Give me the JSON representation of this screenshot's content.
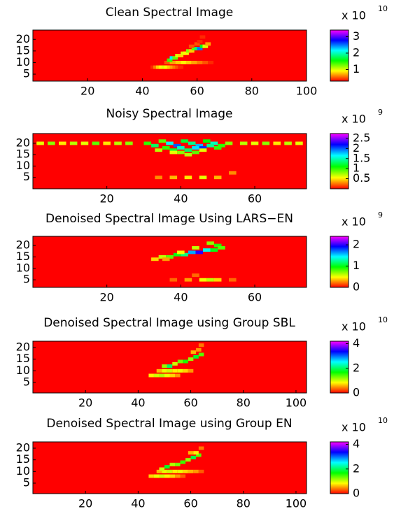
{
  "chart_data": [
    {
      "type": "heatmap",
      "title": "Clean Spectral Image",
      "xlim": [
        0,
        100
      ],
      "ylim": [
        2,
        24
      ],
      "xticks": [
        20,
        40,
        60,
        80,
        100
      ],
      "yticks": [
        5,
        10,
        15,
        20
      ],
      "clim": [
        0.3,
        3.4
      ],
      "cticks": [
        1,
        2,
        3
      ],
      "colorbar_label": "x 10",
      "colorbar_exponent": "10",
      "x": [
        44,
        45,
        46,
        47,
        48,
        49,
        50,
        51,
        52,
        53,
        54,
        49,
        51,
        53,
        55,
        57,
        59,
        61,
        63,
        65,
        50,
        51,
        52,
        53,
        54,
        55,
        56,
        57,
        58,
        59,
        60,
        61,
        62,
        63,
        64,
        58,
        60,
        61,
        62
      ],
      "y": [
        8,
        8,
        8,
        8,
        8,
        8,
        8,
        8,
        8,
        8,
        8,
        10,
        10,
        10,
        10,
        10,
        10,
        10,
        10,
        10,
        11,
        12,
        12,
        13,
        13,
        14,
        14,
        15,
        15,
        16,
        16,
        16,
        17,
        17,
        18,
        17,
        18,
        19,
        21
      ],
      "values": [
        0.4,
        0.6,
        0.8,
        0.9,
        1.0,
        0.9,
        0.8,
        0.7,
        0.6,
        0.5,
        0.4,
        0.5,
        0.7,
        0.8,
        0.9,
        0.8,
        0.7,
        0.6,
        0.5,
        0.4,
        1.4,
        2.2,
        1.3,
        1.0,
        0.8,
        1.0,
        0.9,
        1.2,
        0.8,
        1.3,
        1.8,
        2.5,
        1.6,
        1.0,
        0.7,
        0.5,
        0.5,
        0.4,
        0.4
      ]
    },
    {
      "type": "heatmap",
      "title": "Noisy Spectral Image",
      "xlim": [
        0,
        74
      ],
      "ylim": [
        0,
        24.3
      ],
      "xticks": [
        20,
        40,
        60
      ],
      "yticks": [
        5,
        10,
        15,
        20
      ],
      "clim": [
        0,
        2.74
      ],
      "cticks": [
        0.5,
        1,
        1.5,
        2,
        2.5
      ],
      "colorbar_label": "x 10",
      "colorbar_exponent": "9",
      "x": [
        2,
        5,
        8,
        11,
        14,
        17,
        20,
        23,
        26,
        57,
        60,
        63,
        66,
        69,
        72,
        31,
        33,
        35,
        37,
        39,
        41,
        43,
        45,
        47,
        49,
        51,
        53,
        34,
        36,
        38,
        40,
        42,
        44,
        46,
        48,
        50,
        38,
        40,
        42,
        44,
        46,
        34,
        38,
        42,
        46,
        50,
        54
      ],
      "y": [
        20,
        20,
        20,
        20,
        20,
        20,
        20,
        20,
        20,
        20,
        20,
        20,
        20,
        20,
        20,
        20,
        19,
        21,
        20,
        19,
        21,
        20,
        19,
        21,
        20,
        19,
        20,
        17,
        18,
        17,
        18,
        17,
        18,
        18,
        19,
        18,
        16,
        16,
        15,
        16,
        17,
        5,
        5,
        5,
        5,
        5,
        7
      ],
      "values": [
        0.6,
        0.8,
        0.5,
        0.7,
        0.6,
        0.9,
        0.5,
        0.7,
        0.8,
        0.7,
        0.6,
        0.8,
        0.5,
        0.7,
        0.6,
        1.0,
        1.3,
        0.9,
        1.6,
        2.0,
        1.2,
        1.4,
        1.8,
        1.1,
        1.5,
        1.0,
        0.8,
        0.7,
        1.0,
        1.2,
        1.5,
        1.3,
        1.7,
        2.1,
        1.4,
        1.0,
        0.6,
        0.8,
        0.7,
        0.9,
        0.6,
        0.3,
        0.4,
        0.5,
        0.6,
        0.4,
        0.3
      ]
    },
    {
      "type": "heatmap",
      "title": "Denoised Spectral Image Using LARS−EN",
      "xlim": [
        0,
        74
      ],
      "ylim": [
        1.7,
        24
      ],
      "xticks": [
        20,
        40,
        60
      ],
      "yticks": [
        5,
        10,
        15,
        20
      ],
      "clim": [
        0,
        2.4
      ],
      "cticks": [
        0,
        1,
        2
      ],
      "colorbar_label": "x 10",
      "colorbar_exponent": "9",
      "x": [
        33,
        35,
        37,
        39,
        41,
        43,
        45,
        47,
        49,
        50,
        51,
        48,
        36,
        40,
        44,
        38,
        42,
        46,
        48,
        50,
        54,
        44
      ],
      "y": [
        14,
        15,
        15,
        16,
        16,
        17,
        17,
        18,
        18,
        20,
        19,
        21,
        14,
        17,
        19,
        5,
        5,
        5,
        5,
        5,
        5,
        7
      ],
      "values": [
        0.4,
        0.6,
        0.8,
        1.0,
        1.2,
        1.6,
        2.0,
        1.4,
        1.0,
        0.9,
        0.8,
        0.7,
        0.3,
        0.5,
        0.6,
        0.2,
        0.3,
        0.5,
        0.6,
        0.4,
        0.2,
        0.2
      ]
    },
    {
      "type": "heatmap",
      "title": "Denoised Spectral Image using Group SBL",
      "xlim": [
        0,
        104
      ],
      "ylim": [
        0.5,
        22.7
      ],
      "xticks": [
        20,
        40,
        60,
        80,
        100
      ],
      "yticks": [
        5,
        10,
        15,
        20
      ],
      "clim": [
        0,
        4.2
      ],
      "cticks": [
        0,
        2,
        4
      ],
      "colorbar_label": "x 10",
      "colorbar_exponent": "10",
      "x": [
        45,
        47,
        49,
        51,
        53,
        55,
        48,
        50,
        52,
        54,
        56,
        58,
        60,
        50,
        52,
        54,
        56,
        58,
        60,
        62,
        64,
        61,
        63,
        64
      ],
      "y": [
        8,
        8,
        8,
        8,
        8,
        8,
        10,
        10,
        10,
        10,
        10,
        10,
        10,
        12,
        12,
        13,
        14,
        14,
        15,
        16,
        17,
        18,
        19,
        21
      ],
      "values": [
        0.8,
        1.0,
        1.1,
        0.9,
        0.7,
        0.5,
        0.6,
        0.9,
        1.0,
        0.8,
        0.9,
        0.7,
        0.5,
        1.2,
        2.0,
        1.0,
        1.3,
        1.6,
        1.2,
        1.8,
        1.4,
        0.6,
        0.5,
        0.4
      ]
    },
    {
      "type": "heatmap",
      "title": "Denoised Spectral Image using Group EN",
      "xlim": [
        0,
        104
      ],
      "ylim": [
        0.5,
        22.7
      ],
      "xticks": [
        20,
        40,
        60,
        80,
        100
      ],
      "yticks": [
        5,
        10,
        15,
        20
      ],
      "clim": [
        0,
        4.2
      ],
      "cticks": [
        0,
        2,
        4
      ],
      "colorbar_label": "x 10",
      "colorbar_exponent": "10",
      "x": [
        45,
        47,
        49,
        51,
        53,
        55,
        57,
        48,
        50,
        52,
        54,
        56,
        58,
        60,
        62,
        64,
        49,
        51,
        53,
        55,
        57,
        59,
        61,
        63,
        60,
        62,
        64
      ],
      "y": [
        8,
        8,
        8,
        8,
        8,
        8,
        8,
        10,
        10,
        10,
        10,
        10,
        10,
        10,
        10,
        10,
        11,
        12,
        13,
        13,
        14,
        15,
        16,
        17,
        18,
        18,
        20
      ],
      "values": [
        0.7,
        0.9,
        1.0,
        0.8,
        0.7,
        0.5,
        0.3,
        0.6,
        0.9,
        1.0,
        0.8,
        0.9,
        0.7,
        0.6,
        0.5,
        0.3,
        1.0,
        1.8,
        1.1,
        1.3,
        1.5,
        1.2,
        1.9,
        1.4,
        0.6,
        0.8,
        0.4
      ]
    }
  ]
}
